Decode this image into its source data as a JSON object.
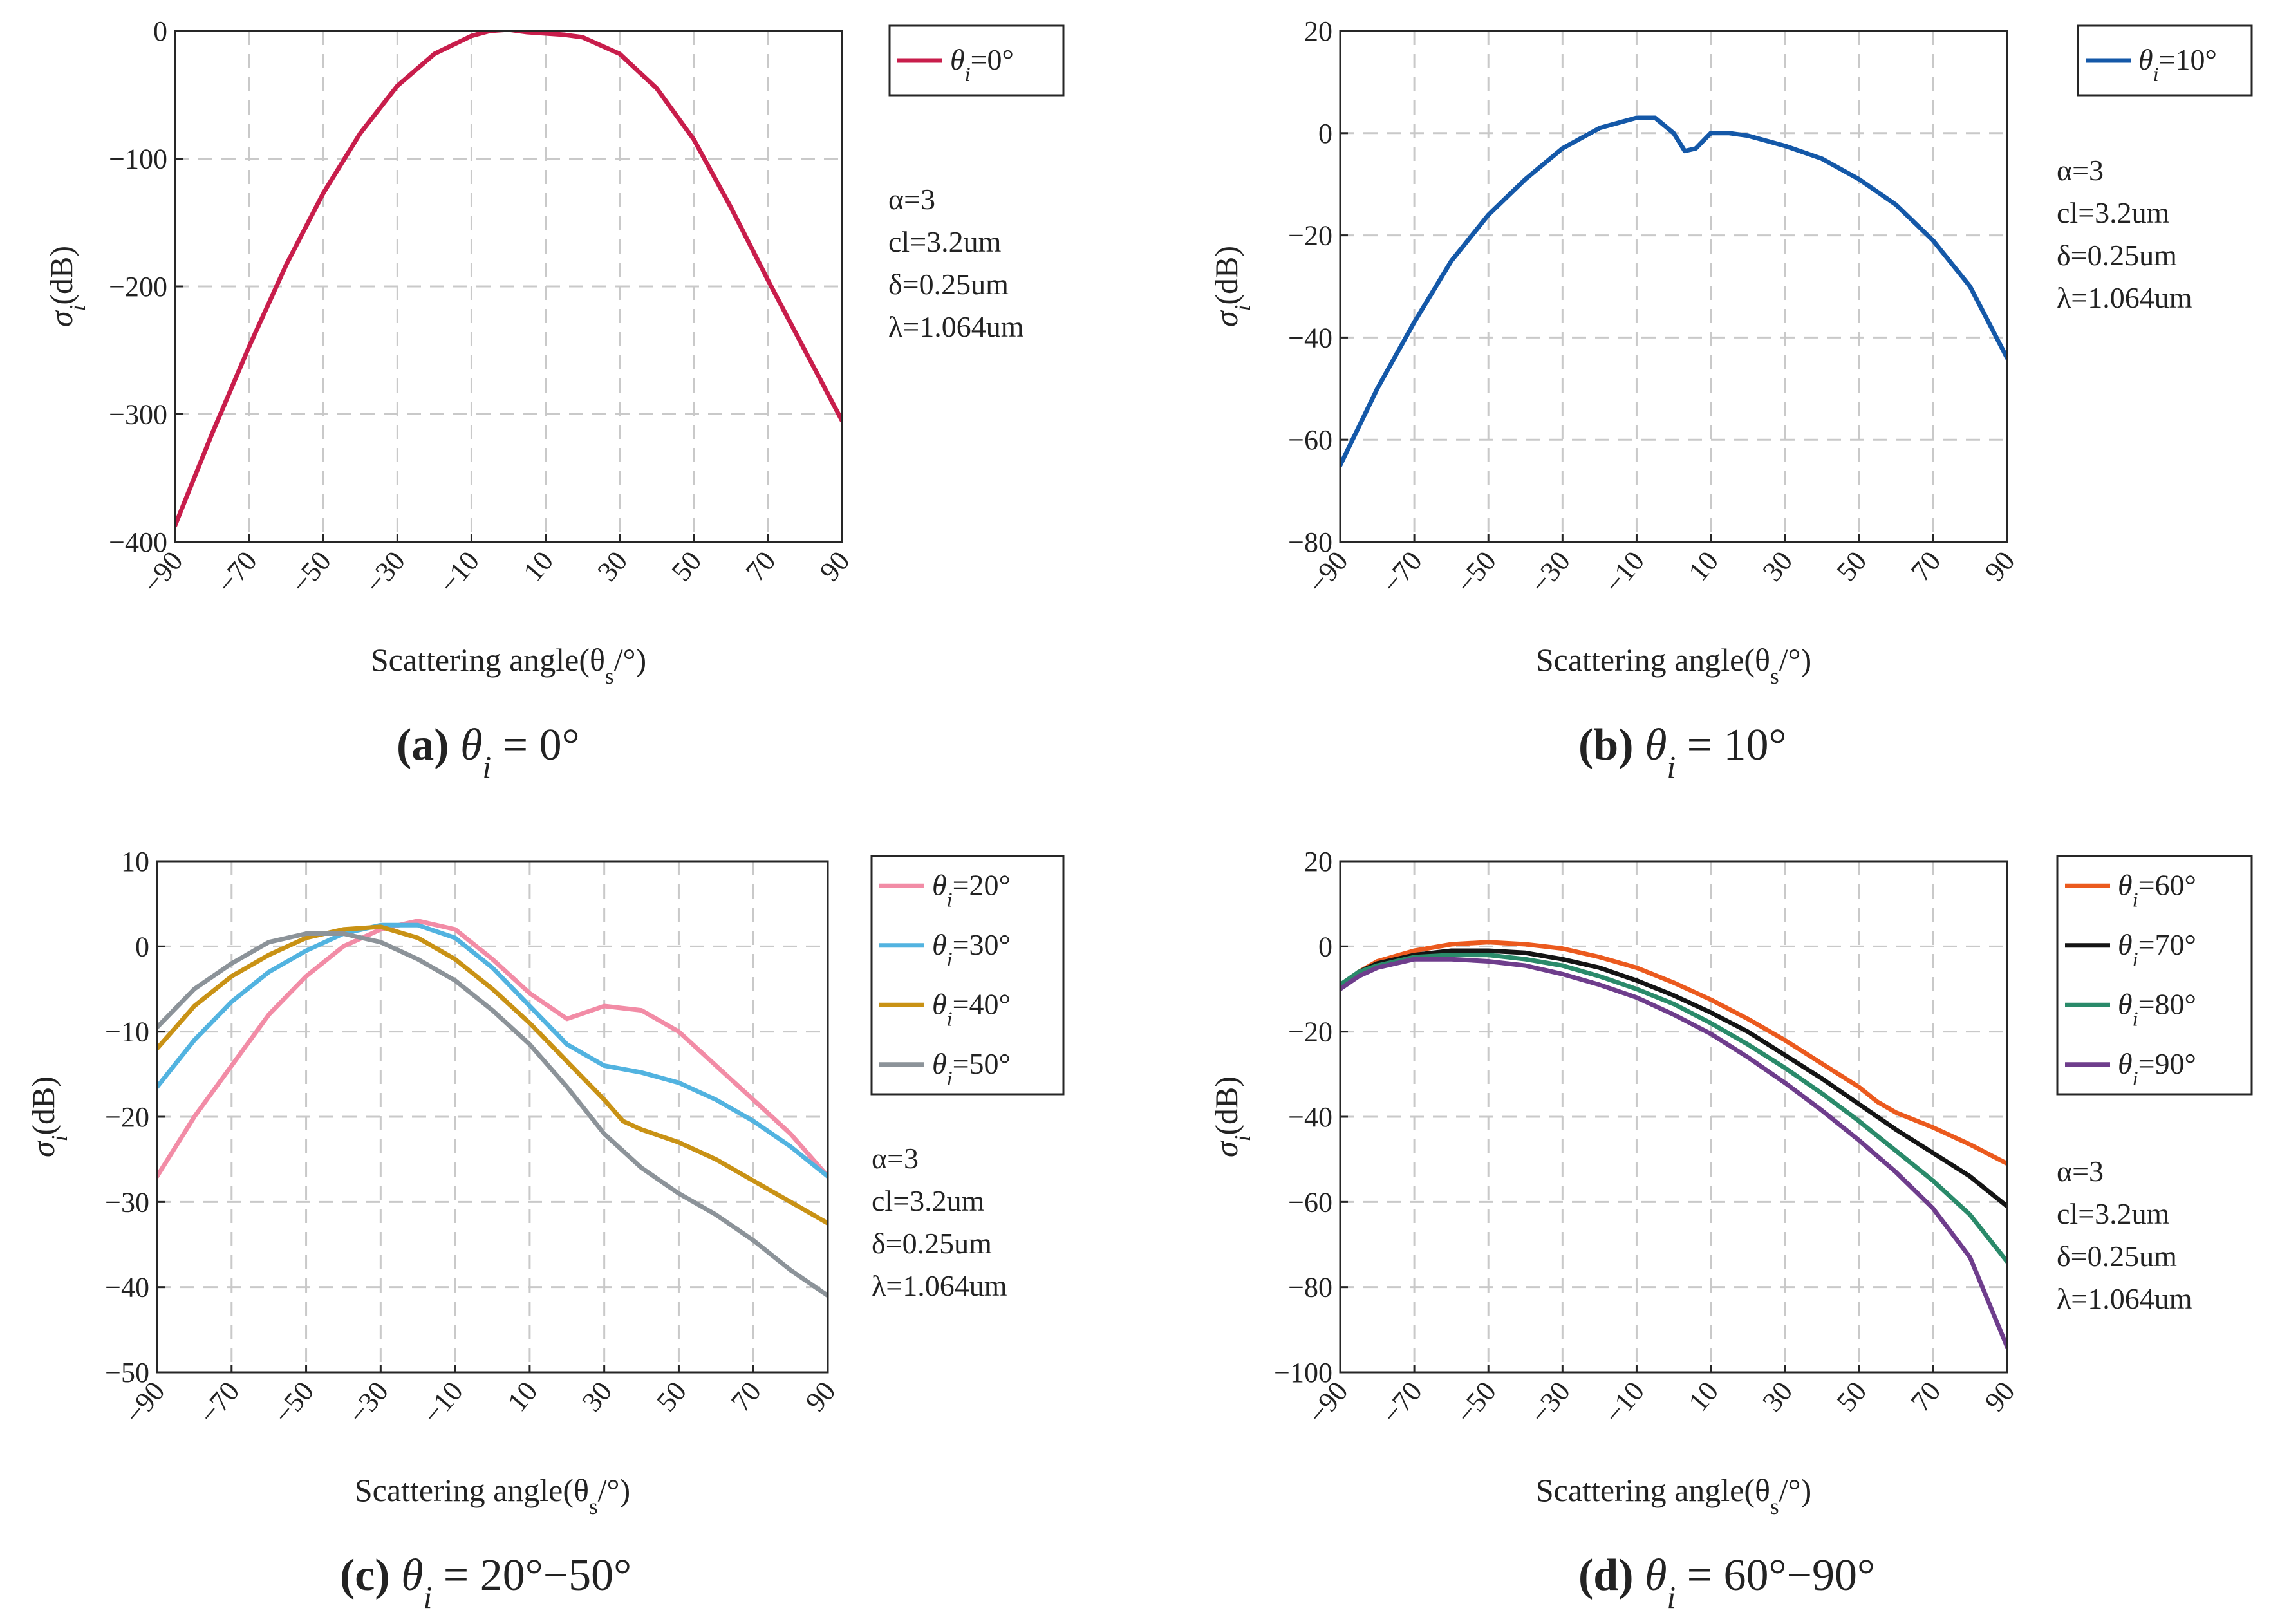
{
  "chart_data": [
    {
      "type": "line",
      "id": "a",
      "caption_letter": "(a)",
      "caption_math": "θ",
      "caption_sub": "i",
      "caption_rest": " = 0°",
      "xlabel": "Scattering angle(θ",
      "xlabel_sub": "s",
      "xlabel_end": "/°)",
      "ylabel": "σ",
      "ylabel_sub": "i",
      "ylabel_end": "(dB)",
      "xlim": [
        -90,
        90
      ],
      "ylim": [
        -400,
        0
      ],
      "xticks": [
        -90,
        -70,
        -50,
        -30,
        -10,
        10,
        30,
        50,
        70,
        90
      ],
      "yticks": [
        0,
        -100,
        -200,
        -300,
        -400
      ],
      "ytick_labels": [
        "0",
        "−100",
        "−200",
        "−300",
        "−400"
      ],
      "xtick_labels": [
        "−90",
        "−70",
        "−50",
        "−30",
        "−10",
        "10",
        "30",
        "50",
        "70",
        "90"
      ],
      "grid": true,
      "legend_position": "outside-right-top",
      "annotation": [
        "α=3",
        "cl=3.2um",
        "δ=0.25um",
        "λ=1.064um"
      ],
      "series": [
        {
          "name": "θi=0°",
          "legend_main": "θ",
          "legend_sub": "i",
          "legend_end": "=0°",
          "color": "#c81d4b",
          "x": [
            -90,
            -80,
            -70,
            -60,
            -50,
            -40,
            -30,
            -20,
            -10,
            -5,
            0,
            5,
            10,
            15,
            20,
            30,
            40,
            50,
            60,
            70,
            80,
            90
          ],
          "y": [
            -387,
            -315,
            -247,
            -183,
            -127,
            -80,
            -43,
            -18,
            -4,
            0,
            1,
            -1,
            -2,
            -3,
            -5,
            -18,
            -45,
            -85,
            -138,
            -195,
            -250,
            -305
          ]
        }
      ]
    },
    {
      "type": "line",
      "id": "b",
      "caption_letter": "(b)",
      "caption_math": "θ",
      "caption_sub": "i",
      "caption_rest": " = 10°",
      "xlabel": "Scattering angle(θ",
      "xlabel_sub": "s",
      "xlabel_end": "/°)",
      "ylabel": "σ",
      "ylabel_sub": "i",
      "ylabel_end": "(dB)",
      "xlim": [
        -90,
        90
      ],
      "ylim": [
        -80,
        20
      ],
      "xticks": [
        -90,
        -70,
        -50,
        -30,
        -10,
        10,
        30,
        50,
        70,
        90
      ],
      "yticks": [
        20,
        0,
        -20,
        -40,
        -60,
        -80
      ],
      "ytick_labels": [
        "20",
        "0",
        "−20",
        "−40",
        "−60",
        "−80"
      ],
      "xtick_labels": [
        "−90",
        "−70",
        "−50",
        "−30",
        "−10",
        "10",
        "30",
        "50",
        "70",
        "90"
      ],
      "grid": true,
      "legend_position": "outside-right-top",
      "annotation": [
        "α=3",
        "cl=3.2um",
        "δ=0.25um",
        "λ=1.064um"
      ],
      "series": [
        {
          "name": "θi=10°",
          "legend_main": "θ",
          "legend_sub": "i",
          "legend_end": "=10°",
          "color": "#1458a8",
          "x": [
            -90,
            -80,
            -70,
            -60,
            -50,
            -40,
            -30,
            -20,
            -10,
            -5,
            0,
            3,
            6,
            10,
            15,
            20,
            30,
            40,
            50,
            60,
            70,
            80,
            90
          ],
          "y": [
            -65,
            -50,
            -37,
            -25,
            -16,
            -9,
            -3,
            1,
            3,
            3,
            0,
            -3.5,
            -3,
            0,
            0,
            -0.5,
            -2.5,
            -5,
            -9,
            -14,
            -21,
            -30,
            -44
          ]
        }
      ]
    },
    {
      "type": "line",
      "id": "c",
      "caption_letter": "(c)",
      "caption_math": "θ",
      "caption_sub": "i",
      "caption_rest": " = 20°−50°",
      "xlabel": "Scattering angle(θ",
      "xlabel_sub": "s",
      "xlabel_end": "/°)",
      "ylabel": "σ",
      "ylabel_sub": "i",
      "ylabel_end": "(dB)",
      "xlim": [
        -90,
        90
      ],
      "ylim": [
        -50,
        10
      ],
      "xticks": [
        -90,
        -70,
        -50,
        -30,
        -10,
        10,
        30,
        50,
        70,
        90
      ],
      "yticks": [
        10,
        0,
        -10,
        -20,
        -30,
        -40,
        -50
      ],
      "ytick_labels": [
        "10",
        "0",
        "−10",
        "−20",
        "−30",
        "−40",
        "−50"
      ],
      "xtick_labels": [
        "−90",
        "−70",
        "−50",
        "−30",
        "−10",
        "10",
        "30",
        "50",
        "70",
        "90"
      ],
      "grid": true,
      "legend_position": "outside-right-top",
      "annotation": [
        "α=3",
        "cl=3.2um",
        "δ=0.25um",
        "λ=1.064um"
      ],
      "series": [
        {
          "name": "θi=20°",
          "legend_main": "θ",
          "legend_sub": "i",
          "legend_end": "=20°",
          "color": "#f28ca6",
          "x": [
            -90,
            -80,
            -70,
            -60,
            -50,
            -40,
            -30,
            -20,
            -10,
            0,
            10,
            20,
            30,
            40,
            50,
            60,
            70,
            80,
            90
          ],
          "y": [
            -27,
            -20,
            -14,
            -8,
            -3.5,
            0,
            2,
            3,
            2,
            -1.5,
            -5.5,
            -8.5,
            -7,
            -7.5,
            -10,
            -14,
            -18,
            -22,
            -27
          ]
        },
        {
          "name": "θi=30°",
          "legend_main": "θ",
          "legend_sub": "i",
          "legend_end": "=30°",
          "color": "#52b3e0",
          "x": [
            -90,
            -80,
            -70,
            -60,
            -50,
            -40,
            -30,
            -20,
            -10,
            0,
            10,
            20,
            30,
            40,
            50,
            60,
            70,
            80,
            90
          ],
          "y": [
            -16.5,
            -11,
            -6.5,
            -3,
            -0.5,
            1.5,
            2.5,
            2.5,
            1,
            -2.5,
            -7,
            -11.5,
            -14,
            -14.8,
            -16,
            -18,
            -20.5,
            -23.5,
            -27
          ]
        },
        {
          "name": "θi=40°",
          "legend_main": "θ",
          "legend_sub": "i",
          "legend_end": "=40°",
          "color": "#c99215",
          "x": [
            -90,
            -80,
            -70,
            -60,
            -50,
            -40,
            -30,
            -20,
            -10,
            0,
            10,
            20,
            30,
            35,
            40,
            50,
            60,
            70,
            80,
            90
          ],
          "y": [
            -12,
            -7,
            -3.5,
            -1,
            1,
            2,
            2.3,
            1,
            -1.5,
            -5,
            -9,
            -13.5,
            -18,
            -20.5,
            -21.5,
            -23,
            -25,
            -27.5,
            -30,
            -32.5
          ]
        },
        {
          "name": "θi=50°",
          "legend_main": "θ",
          "legend_sub": "i",
          "legend_end": "=50°",
          "color": "#8c9399",
          "x": [
            -90,
            -80,
            -70,
            -60,
            -50,
            -40,
            -30,
            -20,
            -10,
            0,
            10,
            20,
            30,
            40,
            50,
            60,
            70,
            80,
            90
          ],
          "y": [
            -9.5,
            -5,
            -2,
            0.5,
            1.5,
            1.5,
            0.5,
            -1.5,
            -4,
            -7.5,
            -11.5,
            -16.5,
            -22,
            -26,
            -29,
            -31.5,
            -34.5,
            -38,
            -41
          ]
        }
      ]
    },
    {
      "type": "line",
      "id": "d",
      "caption_letter": "(d)",
      "caption_math": "θ",
      "caption_sub": "i",
      "caption_rest": " = 60°−90°",
      "xlabel": "Scattering angle(θ",
      "xlabel_sub": "s",
      "xlabel_end": "/°)",
      "ylabel": "σ",
      "ylabel_sub": "i",
      "ylabel_end": "(dB)",
      "xlim": [
        -90,
        90
      ],
      "ylim": [
        -100,
        20
      ],
      "xticks": [
        -90,
        -70,
        -50,
        -30,
        -10,
        10,
        30,
        50,
        70,
        90
      ],
      "yticks": [
        20,
        0,
        -20,
        -40,
        -60,
        -80,
        -100
      ],
      "ytick_labels": [
        "20",
        "0",
        "−20",
        "−40",
        "−60",
        "−80",
        "−100"
      ],
      "xtick_labels": [
        "−90",
        "−70",
        "−50",
        "−30",
        "−10",
        "10",
        "30",
        "50",
        "70",
        "90"
      ],
      "grid": true,
      "legend_position": "outside-right-top",
      "annotation": [
        "α=3",
        "cl=3.2um",
        "δ=0.25um",
        "λ=1.064um"
      ],
      "series": [
        {
          "name": "θi=60°",
          "legend_main": "θ",
          "legend_sub": "i",
          "legend_end": "=60°",
          "color": "#eb5a1e",
          "x": [
            -90,
            -85,
            -80,
            -70,
            -60,
            -50,
            -40,
            -30,
            -20,
            -10,
            0,
            10,
            20,
            30,
            40,
            50,
            55,
            60,
            70,
            80,
            90
          ],
          "y": [
            -10,
            -6,
            -3.5,
            -1,
            0.5,
            1,
            0.5,
            -0.5,
            -2.5,
            -5,
            -8.5,
            -12.5,
            -17,
            -22,
            -27.5,
            -33,
            -36.5,
            -39,
            -42.5,
            -46.5,
            -51
          ]
        },
        {
          "name": "θi=70°",
          "legend_main": "θ",
          "legend_sub": "i",
          "legend_end": "=70°",
          "color": "#141414",
          "x": [
            -90,
            -85,
            -80,
            -70,
            -60,
            -50,
            -40,
            -30,
            -20,
            -10,
            0,
            10,
            20,
            30,
            40,
            50,
            60,
            70,
            80,
            90
          ],
          "y": [
            -10,
            -6,
            -4,
            -2,
            -1,
            -1,
            -1.5,
            -3,
            -5,
            -8,
            -11.5,
            -15.5,
            -20,
            -25.5,
            -31,
            -37,
            -43,
            -48.5,
            -54,
            -61
          ]
        },
        {
          "name": "θi=80°",
          "legend_main": "θ",
          "legend_sub": "i",
          "legend_end": "=80°",
          "color": "#2a8a6a",
          "x": [
            -90,
            -85,
            -80,
            -70,
            -60,
            -50,
            -40,
            -30,
            -20,
            -10,
            0,
            10,
            20,
            30,
            40,
            50,
            60,
            70,
            80,
            90
          ],
          "y": [
            -9,
            -6,
            -4.5,
            -2.5,
            -2,
            -2,
            -3,
            -4.5,
            -7,
            -10,
            -13.5,
            -18,
            -23,
            -28.5,
            -34.5,
            -41,
            -48,
            -55,
            -63,
            -74
          ]
        },
        {
          "name": "θi=90°",
          "legend_main": "θ",
          "legend_sub": "i",
          "legend_end": "=90°",
          "color": "#6e3d8c",
          "x": [
            -90,
            -85,
            -80,
            -70,
            -60,
            -50,
            -40,
            -30,
            -20,
            -10,
            0,
            10,
            20,
            30,
            40,
            50,
            60,
            70,
            80,
            90
          ],
          "y": [
            -10,
            -7,
            -5,
            -3,
            -3,
            -3.5,
            -4.5,
            -6.5,
            -9,
            -12,
            -16,
            -20.5,
            -26,
            -32,
            -38.5,
            -45.5,
            -53,
            -61.5,
            -73,
            -94
          ]
        }
      ]
    }
  ]
}
